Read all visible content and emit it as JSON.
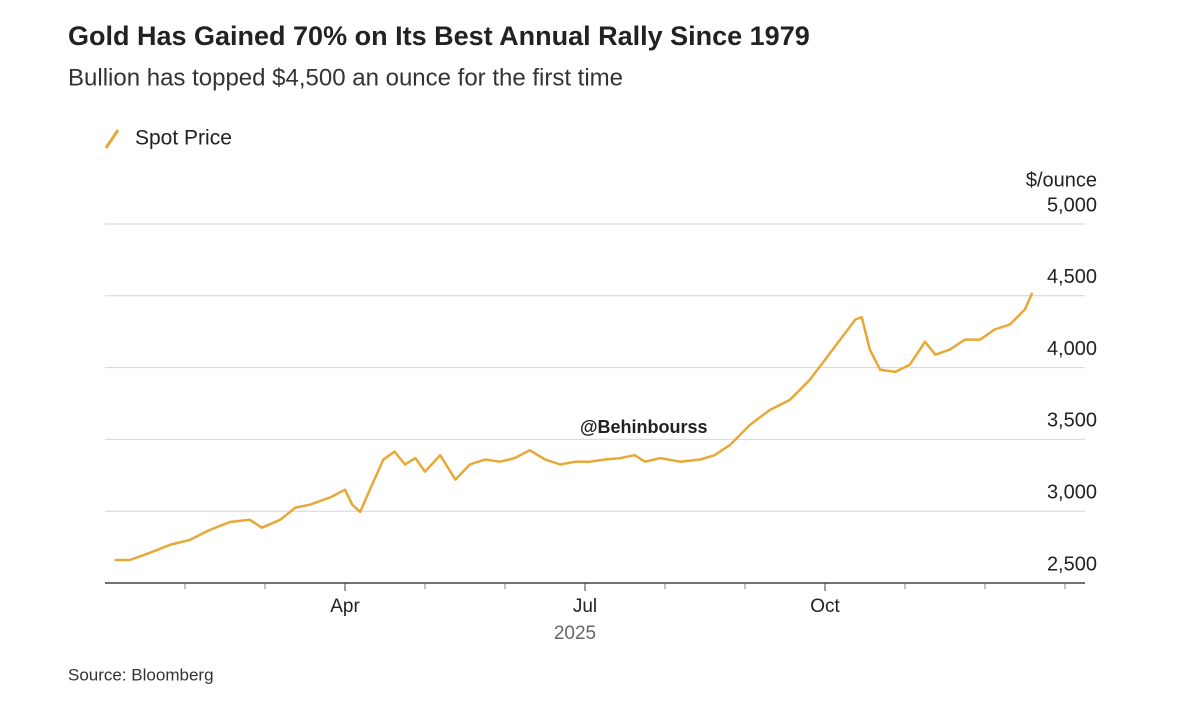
{
  "chart_data": {
    "type": "line",
    "title": "Gold Has Gained 70% on Its Best Annual Rally Since 1979",
    "subtitle": "Bullion has topped $4,500 an ounce for the first time",
    "y_unit_label": "$/ounce",
    "xlabel": "2025",
    "annotation": "@Behinbourss",
    "source": "Source: Bloomberg",
    "x": [
      0.12,
      0.31,
      0.56,
      0.81,
      1.06,
      1.31,
      1.56,
      1.81,
      1.96,
      2.19,
      2.38,
      2.56,
      2.81,
      3.0,
      3.09,
      3.19,
      3.31,
      3.48,
      3.62,
      3.75,
      3.88,
      4.0,
      4.19,
      4.38,
      4.56,
      4.75,
      4.94,
      5.12,
      5.31,
      5.5,
      5.69,
      5.88,
      6.06,
      6.25,
      6.44,
      6.62,
      6.75,
      6.94,
      7.19,
      7.44,
      7.62,
      7.81,
      8.06,
      8.31,
      8.56,
      8.81,
      9.0,
      9.19,
      9.38,
      9.46,
      9.56,
      9.69,
      9.88,
      10.06,
      10.25,
      10.38,
      10.56,
      10.75,
      10.94,
      11.12,
      11.31,
      11.5,
      11.59
    ],
    "series": [
      {
        "name": "Spot Price",
        "color": "#e8a838",
        "values": [
          2660,
          2660,
          2710,
          2765,
          2800,
          2870,
          2925,
          2940,
          2885,
          2940,
          3025,
          3045,
          3095,
          3150,
          3045,
          2995,
          3150,
          3360,
          3415,
          3325,
          3370,
          3275,
          3390,
          3220,
          3325,
          3360,
          3345,
          3370,
          3425,
          3360,
          3325,
          3345,
          3345,
          3360,
          3370,
          3390,
          3345,
          3370,
          3345,
          3360,
          3390,
          3460,
          3600,
          3705,
          3775,
          3915,
          4055,
          4195,
          4335,
          4350,
          4125,
          3985,
          3970,
          4020,
          4180,
          4090,
          4125,
          4195,
          4195,
          4265,
          4300,
          4405,
          4520
        ]
      }
    ],
    "xlim": [
      0,
      12.25
    ],
    "xticks": [
      {
        "value": 3,
        "label": "Apr"
      },
      {
        "value": 6,
        "label": "Jul"
      },
      {
        "value": 9,
        "label": "Oct"
      }
    ],
    "xminor_ticks": [
      1,
      2,
      4,
      5,
      7,
      8,
      10,
      11,
      12
    ],
    "ylim": [
      2500,
      5000
    ],
    "yticks": [
      {
        "value": 2500,
        "label": "2,500"
      },
      {
        "value": 3000,
        "label": "3,000"
      },
      {
        "value": 3500,
        "label": "3,500"
      },
      {
        "value": 4000,
        "label": "4,000"
      },
      {
        "value": 4500,
        "label": "4,500"
      },
      {
        "value": 5000,
        "label": "5,000"
      }
    ],
    "grid": true
  }
}
